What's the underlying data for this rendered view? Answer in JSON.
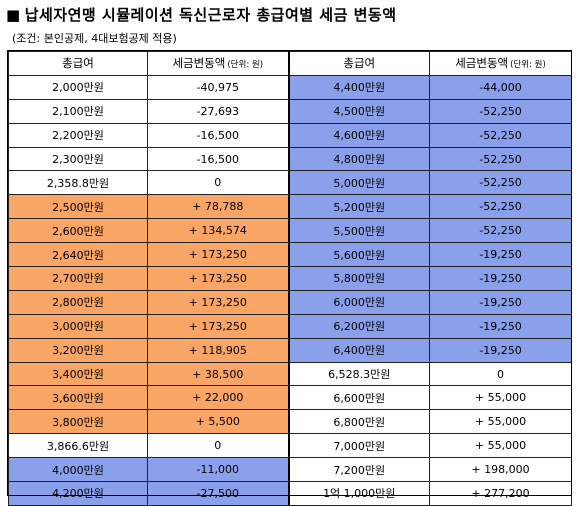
{
  "title": {
    "icon": "black-square-icon",
    "text": "납세자연맹 시뮬레이션 독신근로자 총급여별 세금 변동액"
  },
  "subtitle": "(조건: 본인공제, 4대보험공제 적용)",
  "colors": {
    "white": "#ffffff",
    "orange": "#f9a565",
    "blue": "#8aa0ea"
  },
  "headers": {
    "salary": "총급여",
    "change": "세금변동액",
    "unit": "(단위: 원)"
  },
  "left_rows": [
    {
      "salary": "2,000만원",
      "change": "-40,975",
      "color": "white"
    },
    {
      "salary": "2,100만원",
      "change": "-27,693",
      "color": "white"
    },
    {
      "salary": "2,200만원",
      "change": "-16,500",
      "color": "white"
    },
    {
      "salary": "2,300만원",
      "change": "-16,500",
      "color": "white"
    },
    {
      "salary": "2,358.8만원",
      "change": "0",
      "color": "white"
    },
    {
      "salary": "2,500만원",
      "change": "+ 78,788",
      "color": "orange"
    },
    {
      "salary": "2,600만원",
      "change": "+ 134,574",
      "color": "orange"
    },
    {
      "salary": "2,640만원",
      "change": "+ 173,250",
      "color": "orange"
    },
    {
      "salary": "2,700만원",
      "change": "+ 173,250",
      "color": "orange"
    },
    {
      "salary": "2,800만원",
      "change": "+ 173,250",
      "color": "orange"
    },
    {
      "salary": "3,000만원",
      "change": "+ 173,250",
      "color": "orange"
    },
    {
      "salary": "3,200만원",
      "change": "+ 118,905",
      "color": "orange"
    },
    {
      "salary": "3,400만원",
      "change": "+ 38,500",
      "color": "orange"
    },
    {
      "salary": "3,600만원",
      "change": "+ 22,000",
      "color": "orange"
    },
    {
      "salary": "3,800만원",
      "change": "+ 5,500",
      "color": "orange"
    },
    {
      "salary": "3,866.6만원",
      "change": "0",
      "color": "white"
    },
    {
      "salary": "4,000만원",
      "change": "-11,000",
      "color": "blue"
    },
    {
      "salary": "4,200만원",
      "change": "-27,500",
      "color": "blue"
    }
  ],
  "right_rows": [
    {
      "salary": "4,400만원",
      "change": "-44,000",
      "color": "blue"
    },
    {
      "salary": "4,500만원",
      "change": "-52,250",
      "color": "blue"
    },
    {
      "salary": "4,600만원",
      "change": "-52,250",
      "color": "blue"
    },
    {
      "salary": "4,800만원",
      "change": "-52,250",
      "color": "blue"
    },
    {
      "salary": "5,000만원",
      "change": "-52,250",
      "color": "blue"
    },
    {
      "salary": "5,200만원",
      "change": "-52,250",
      "color": "blue"
    },
    {
      "salary": "5,500만원",
      "change": "-52,250",
      "color": "blue"
    },
    {
      "salary": "5,600만원",
      "change": "-19,250",
      "color": "blue"
    },
    {
      "salary": "5,800만원",
      "change": "-19,250",
      "color": "blue"
    },
    {
      "salary": "6,000만원",
      "change": "-19,250",
      "color": "blue"
    },
    {
      "salary": "6,200만원",
      "change": "-19,250",
      "color": "blue"
    },
    {
      "salary": "6,400만원",
      "change": "-19,250",
      "color": "blue"
    },
    {
      "salary": "6,528.3만원",
      "change": "0",
      "color": "white"
    },
    {
      "salary": "6,600만원",
      "change": "+ 55,000",
      "color": "white"
    },
    {
      "salary": "6,800만원",
      "change": "+ 55,000",
      "color": "white"
    },
    {
      "salary": "7,000만원",
      "change": "+ 55,000",
      "color": "white"
    },
    {
      "salary": "7,200만원",
      "change": "+ 198,000",
      "color": "white"
    },
    {
      "salary": "1억 1,000만원",
      "change": "+ 277,200",
      "color": "white"
    }
  ]
}
